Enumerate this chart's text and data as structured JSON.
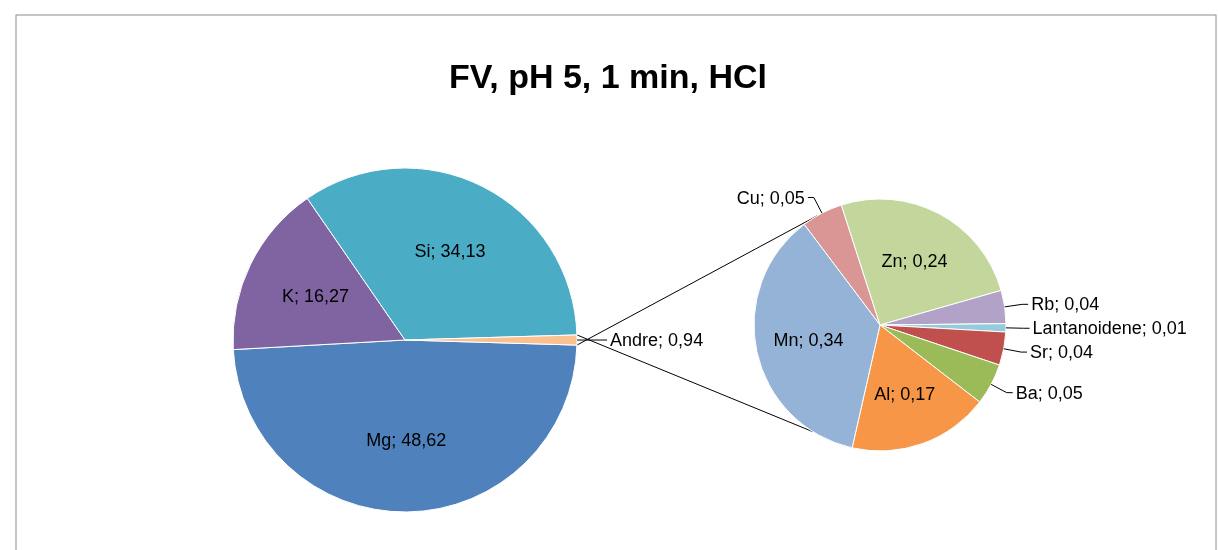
{
  "chart_data": [
    {
      "type": "pie",
      "title": "FV, pH 5, 1 min, HCl",
      "categories": [
        "Mg",
        "K",
        "Si",
        "Andre"
      ],
      "values": [
        48.62,
        16.27,
        34.13,
        0.94
      ],
      "colors": [
        "#4f81bd",
        "#8064a2",
        "#4bacc6",
        "#fac090"
      ],
      "value_labels": [
        "48,62",
        "16,27",
        "34,13",
        "0,94"
      ]
    },
    {
      "type": "pie",
      "categories": [
        "Cu",
        "Zn",
        "Rb",
        "Lantanoidene",
        "Sr",
        "Ba",
        "Al",
        "Mn"
      ],
      "values": [
        0.05,
        0.24,
        0.04,
        0.01,
        0.04,
        0.05,
        0.17,
        0.34
      ],
      "colors": [
        "#d99694",
        "#c3d69b",
        "#b3a2c7",
        "#93cddd",
        "#c0504d",
        "#9bbb59",
        "#f79646",
        "#95b3d7"
      ],
      "value_labels": [
        "0,05",
        "0,24",
        "0,04",
        "0,01",
        "0,04",
        "0,05",
        "0,17",
        "0,34"
      ]
    }
  ]
}
